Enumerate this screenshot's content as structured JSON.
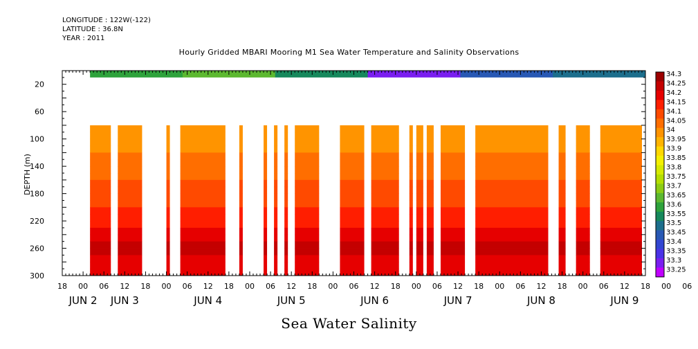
{
  "header": {
    "longitude": "LONGITUDE : 122W(-122)",
    "latitude": "LATITUDE : 36.8N",
    "year": "YEAR : 2011",
    "title": "Hourly Gridded MBARI Mooring M1 Sea Water Temperature and Salinity Observations"
  },
  "caption": "Sea Water Salinity",
  "chart_data": {
    "type": "heatmap",
    "title": "Hourly Gridded MBARI Mooring M1 Sea Water Temperature and Salinity Observations",
    "xlabel": "",
    "ylabel": "DEPTH (m)",
    "xlim_hours": [
      -6,
      162
    ],
    "ylim": [
      300,
      0
    ],
    "y_ticks": [
      20,
      60,
      100,
      140,
      180,
      220,
      260,
      300
    ],
    "x_hour_ticks": [
      "18",
      "00",
      "06",
      "12",
      "18",
      "00",
      "06",
      "12",
      "18",
      "00",
      "06",
      "12",
      "18",
      "00",
      "06",
      "12",
      "18",
      "00",
      "06",
      "12",
      "18",
      "00",
      "06",
      "12",
      "18",
      "00",
      "06",
      "12",
      "18",
      "00",
      "06",
      "12",
      "18"
    ],
    "x_day_labels": [
      {
        "text": "JUN  2",
        "hour": 0
      },
      {
        "text": "JUN  3",
        "hour": 12
      },
      {
        "text": "JUN  4",
        "hour": 36
      },
      {
        "text": "JUN  5",
        "hour": 60
      },
      {
        "text": "JUN  6",
        "hour": 84
      },
      {
        "text": "JUN  7",
        "hour": 108
      },
      {
        "text": "JUN  8",
        "hour": 132
      },
      {
        "text": "JUN  9",
        "hour": 156
      }
    ],
    "colorbar_levels": [
      "34.3",
      "34.25",
      "34.2",
      "34.15",
      "34.1",
      "34.05",
      "34",
      "33.95",
      "33.9",
      "33.85",
      "33.8",
      "33.75",
      "33.7",
      "33.65",
      "33.6",
      "33.55",
      "33.5",
      "33.45",
      "33.4",
      "33.35",
      "33.3",
      "33.25"
    ],
    "colorbar_colors": [
      "#9c0000",
      "#c40000",
      "#e60000",
      "#ff1e00",
      "#ff4a00",
      "#ff6e00",
      "#ff9400",
      "#ffb400",
      "#ffd800",
      "#f4f000",
      "#d6ea00",
      "#b4de00",
      "#8ccc14",
      "#5cb830",
      "#2ea23c",
      "#16885c",
      "#1c6e8c",
      "#2858b4",
      "#3246d2",
      "#4a32e6",
      "#7a1ef0",
      "#c000ff"
    ],
    "surface_band": {
      "depth_range": [
        0,
        10
      ],
      "start_hour": 2,
      "approx_values": [
        33.6,
        33.65,
        33.55,
        33.3,
        33.45,
        33.5
      ]
    },
    "observed_depth_range": [
      80,
      300
    ],
    "observed_segments_hours": [
      [
        2,
        8
      ],
      [
        10,
        17
      ],
      [
        24,
        25
      ],
      [
        28,
        41
      ],
      [
        45,
        46
      ],
      [
        52,
        53
      ],
      [
        55,
        56
      ],
      [
        58,
        59
      ],
      [
        61,
        68
      ],
      [
        74,
        81
      ],
      [
        83,
        91
      ],
      [
        94,
        95
      ],
      [
        96,
        98
      ],
      [
        99,
        101
      ],
      [
        103,
        110
      ],
      [
        113,
        134
      ],
      [
        137,
        139
      ],
      [
        142,
        146
      ],
      [
        149,
        161
      ],
      [
        163,
        167
      ],
      [
        171,
        173
      ],
      [
        175,
        176
      ]
    ],
    "depth_profile": [
      {
        "depth": 80,
        "value": 34.0
      },
      {
        "depth": 100,
        "value": 33.98
      },
      {
        "depth": 140,
        "value": 34.06
      },
      {
        "depth": 180,
        "value": 34.09
      },
      {
        "depth": 220,
        "value": 34.15
      },
      {
        "depth": 260,
        "value": 34.24
      },
      {
        "depth": 300,
        "value": 34.18
      }
    ]
  }
}
